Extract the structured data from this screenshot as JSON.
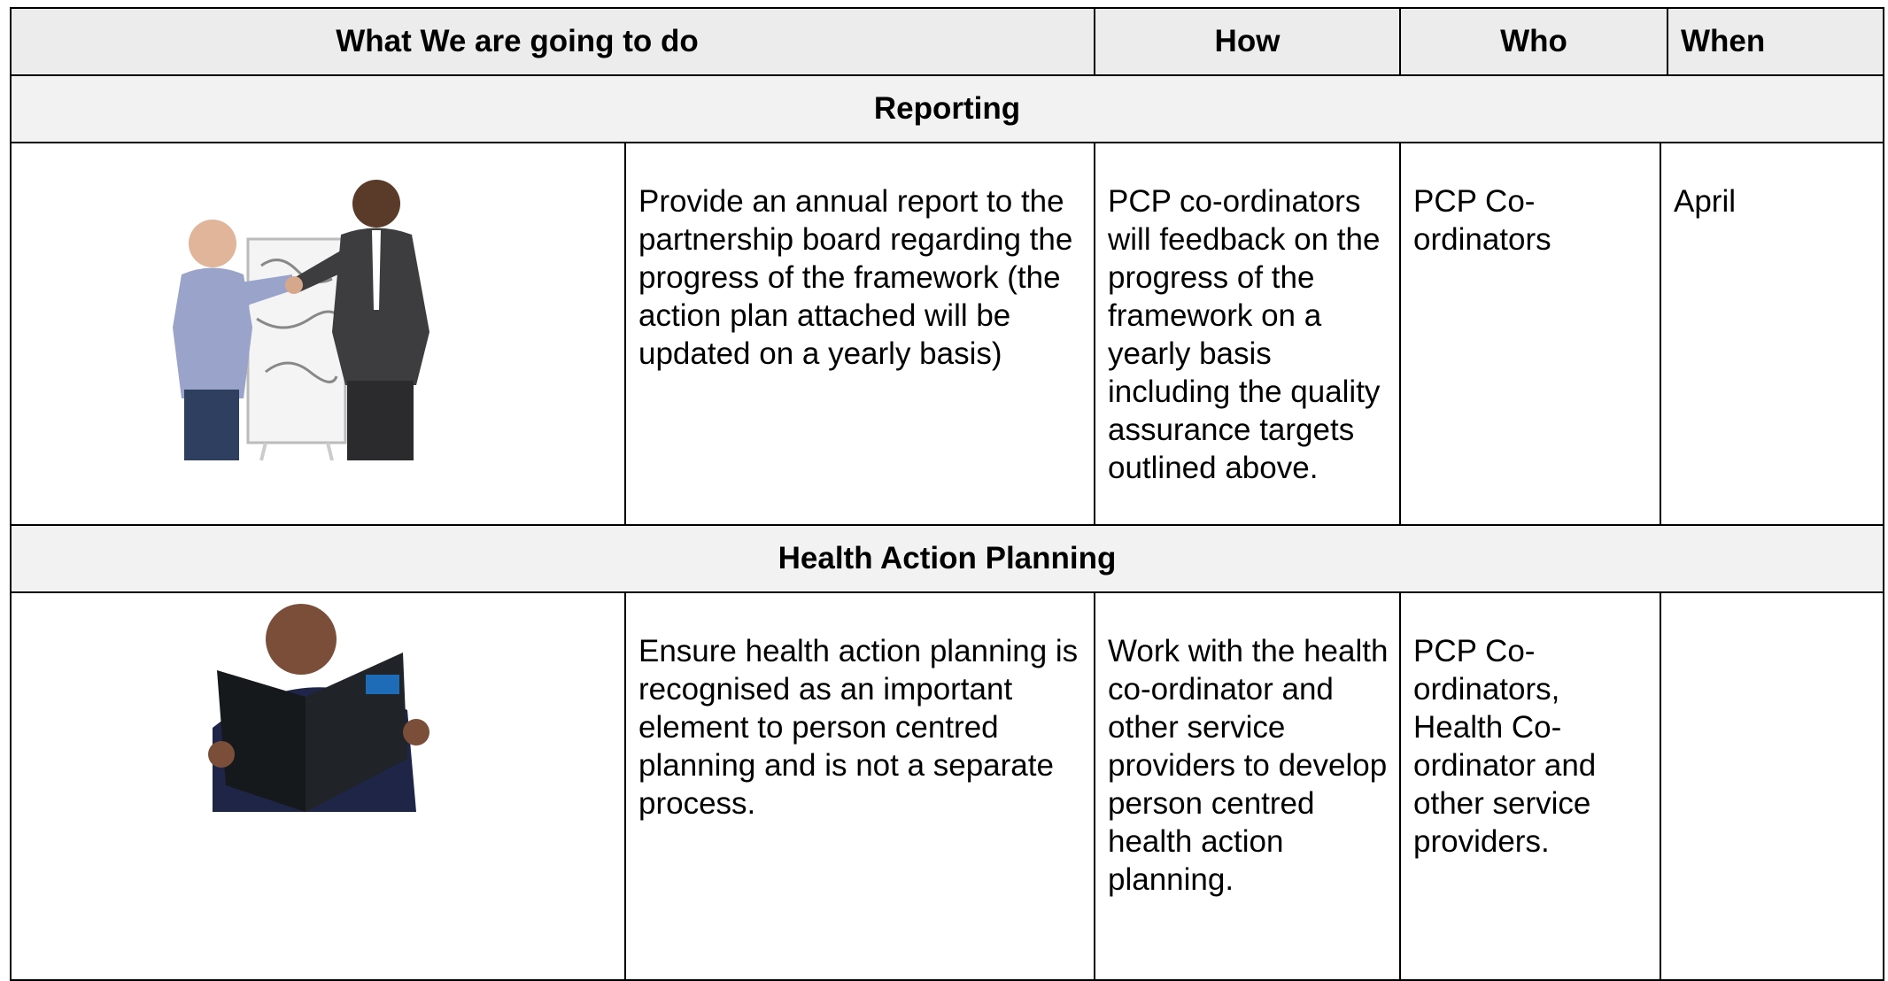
{
  "table": {
    "header": [
      "What We are going to do",
      "How",
      "Who",
      "When"
    ],
    "sections": [
      {
        "title": "Reporting",
        "row": [
          "Provide an annual report to the partnership board regarding the progress of the framework (the action plan attached will be updated on a yearly basis)",
          "PCP co-ordinators will feedback on the progress of the framework on a yearly basis including the quality assurance targets outlined above.",
          "PCP Co-ordinators",
          "April"
        ]
      },
      {
        "title": "Health Action Planning",
        "row": [
          "Ensure health action planning is recognised as an important element to person centred planning and is not a separate process.",
          "Work with the health co-ordinator and other service providers to develop person centred health action planning.",
          "PCP Co-ordinators, Health Co-ordinator and other service providers.",
          null
        ]
      }
    ]
  }
}
